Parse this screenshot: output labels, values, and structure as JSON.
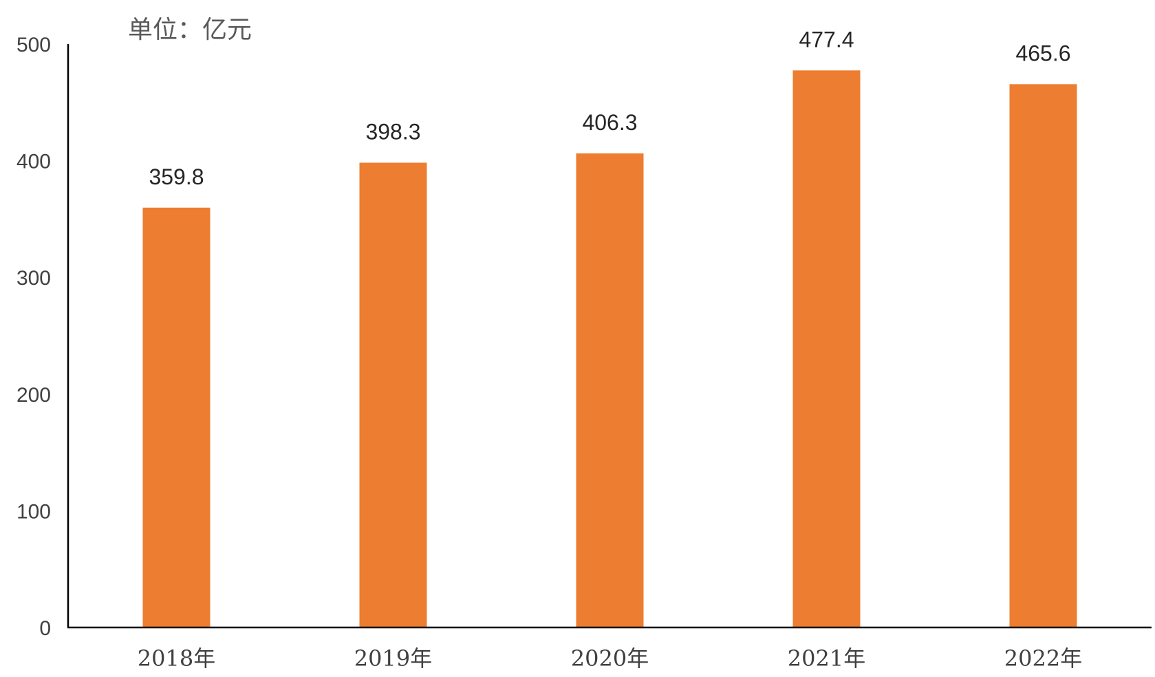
{
  "chart_data": {
    "type": "bar",
    "unit_label": "单位：亿元",
    "categories": [
      "2018年",
      "2019年",
      "2020年",
      "2021年",
      "2022年"
    ],
    "values": [
      359.8,
      398.3,
      406.3,
      477.4,
      465.6
    ],
    "data_labels": [
      "359.8",
      "398.3",
      "406.3",
      "477.4",
      "465.6"
    ],
    "yticks": [
      "0",
      "100",
      "200",
      "300",
      "400",
      "500"
    ],
    "ylim": [
      0,
      500
    ],
    "grid": false,
    "bar_color": "#ED7D31",
    "axis_color": "#000000"
  }
}
